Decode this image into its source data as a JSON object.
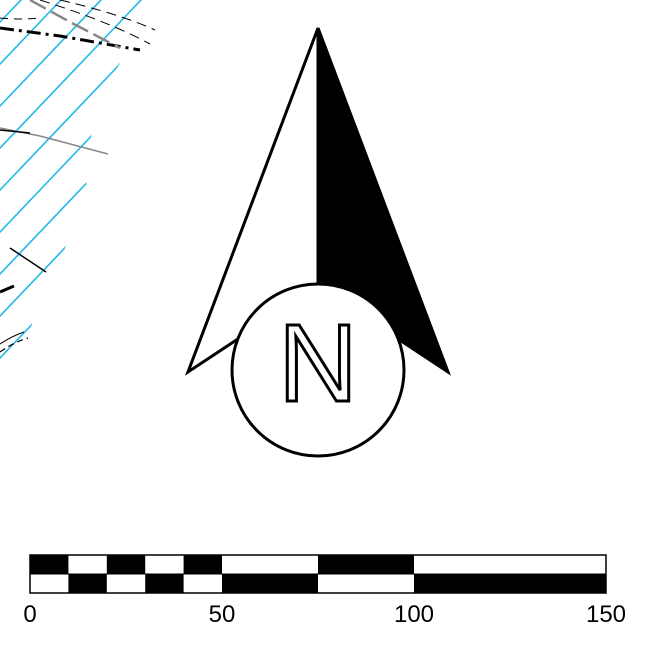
{
  "north_arrow": {
    "letter": "N",
    "fill_color": "#000000",
    "outline_color": "#000000",
    "background_color": "#ffffff"
  },
  "scale_bar": {
    "labels": [
      "0",
      "50",
      "100",
      "150"
    ],
    "fill_color": "#000000",
    "background_color": "#ffffff"
  },
  "map_fragment": {
    "hatch_color": "#1fb8e8",
    "line_colors": [
      "#000000",
      "#888888"
    ]
  }
}
